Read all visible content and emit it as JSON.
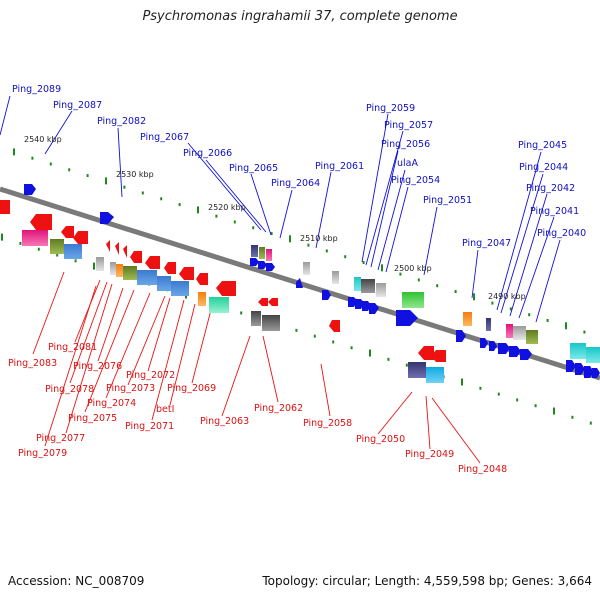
{
  "title": "Psychromonas ingrahamii 37, complete genome",
  "footer": {
    "accession": "Accession: NC_008709",
    "summary": "Topology: circular; Length: 4,559,598 bp; Genes: 3,664"
  },
  "scale_labels": [
    "2540 kbp",
    "2530 kbp",
    "2520 kbp",
    "2510 kbp",
    "2500 kbp",
    "2490 kbp"
  ],
  "labels_top": [
    "Ping_2089",
    "Ping_2087",
    "Ping_2082",
    "Ping_2067",
    "Ping_2066",
    "Ping_2065",
    "Ping_2064",
    "Ping_2061",
    "Ping_2059",
    "Ping_2057",
    "Ping_2056",
    "ulaA",
    "Ping_2054",
    "Ping_2051",
    "Ping_2047",
    "Ping_2045",
    "Ping_2044",
    "Ping_2042",
    "Ping_2041",
    "Ping_2040"
  ],
  "labels_bottom": [
    "Ping_2083",
    "Ping_2081",
    "Ping_2078",
    "Ping_2077",
    "Ping_2079",
    "Ping_2076",
    "Ping_2075",
    "Ping_2074",
    "Ping_2073",
    "Ping_2072",
    "Ping_2071",
    "betI",
    "Ping_2069",
    "Ping_2063",
    "Ping_2062",
    "Ping_2058",
    "Ping_2050",
    "Ping_2049",
    "Ping_2048"
  ],
  "colors": {
    "forward": "#1010e0",
    "reverse": "#ee1111",
    "backbone": "#7a7a7a",
    "tick": "#1e8a1e",
    "label_top": "#1010c0",
    "label_bottom": "#dd1111"
  }
}
